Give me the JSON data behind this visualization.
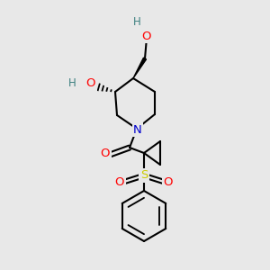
{
  "bg_color": "#e8e8e8",
  "bond_color": "#000000",
  "bond_width": 1.5,
  "atom_colors": {
    "O": "#ff0000",
    "N": "#0000cd",
    "S": "#cccc00",
    "C": "#000000",
    "H": "#3d8080"
  },
  "font_size_atom": 9.5,
  "font_size_H": 8.5
}
